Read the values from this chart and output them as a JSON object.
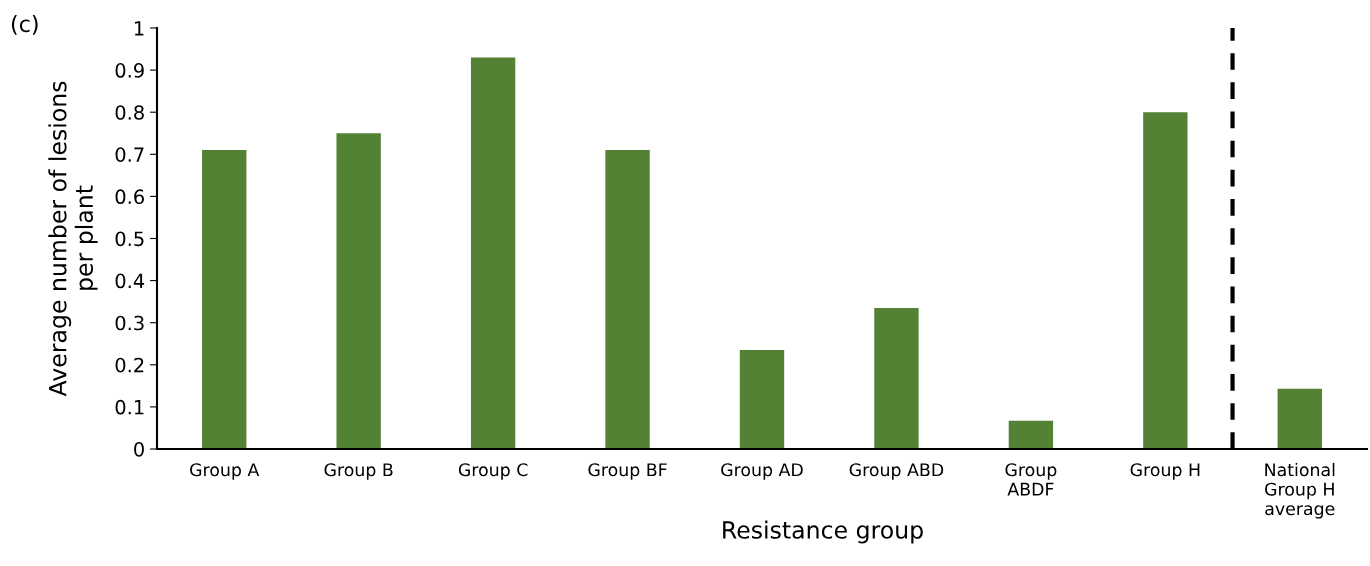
{
  "chart_data": {
    "type": "bar",
    "xlabel": "Resistance group",
    "ylabel": "Average number of lesions\nper plant",
    "annotations": [
      "(c)"
    ],
    "categories": [
      "Group A",
      "Group B",
      "Group C",
      "Group BF",
      "Group AD",
      "Group ABD",
      "Group\nABDF",
      "Group H",
      "National\nGroup H\naverage"
    ],
    "values": [
      0.71,
      0.75,
      0.93,
      0.71,
      0.235,
      0.335,
      0.067,
      0.8,
      0.143
    ],
    "color": "#548235",
    "ylim": [
      0,
      1
    ],
    "yticks": [
      0,
      0.1,
      0.2,
      0.3,
      0.4,
      0.5,
      0.6,
      0.7,
      0.8,
      0.9,
      1
    ],
    "grid": false
  }
}
